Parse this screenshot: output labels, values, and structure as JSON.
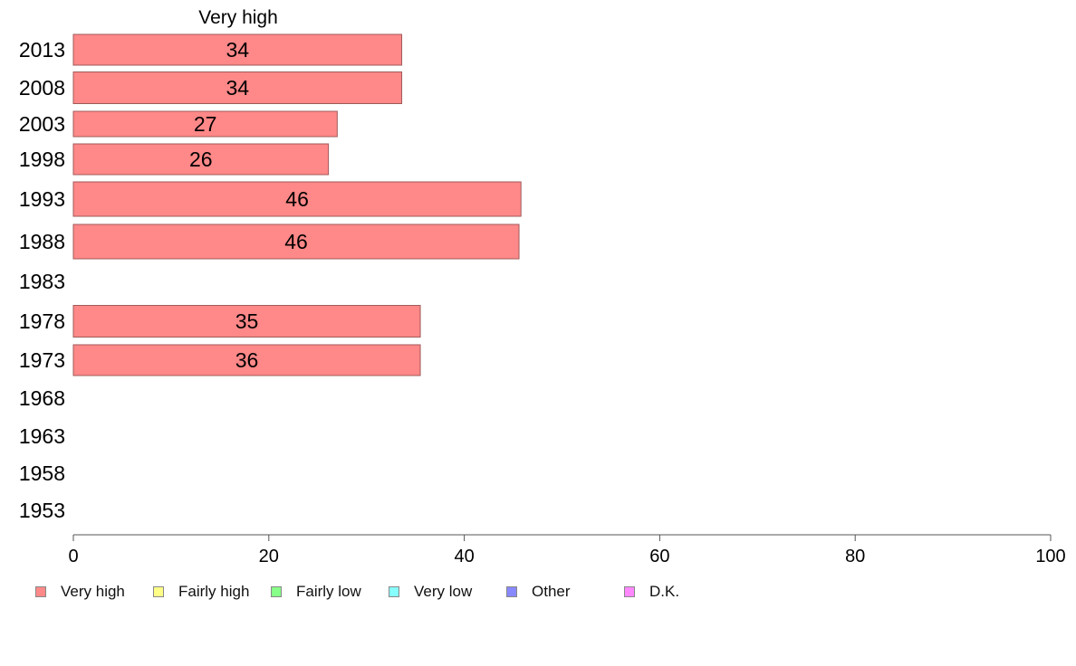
{
  "chart_data": {
    "type": "bar",
    "orientation": "horizontal",
    "title": "Very high",
    "categories": [
      "2013",
      "2008",
      "2003",
      "1998",
      "1993",
      "1988",
      "1983",
      "1978",
      "1973",
      "1968",
      "1963",
      "1958",
      "1953"
    ],
    "series": [
      {
        "name": "Very high",
        "values": [
          33.6,
          33.6,
          27.0,
          26.1,
          45.8,
          45.6,
          null,
          35.5,
          35.5,
          null,
          null,
          null,
          null
        ],
        "labels": [
          "34",
          "34",
          "27",
          "26",
          "46",
          "46",
          "",
          "35",
          "36",
          "",
          "",
          "",
          ""
        ]
      }
    ],
    "xlim": [
      0,
      100
    ],
    "xticks": [
      "0",
      "20",
      "40",
      "60",
      "80",
      "100"
    ],
    "grid": false,
    "legend_position": "bottom",
    "legend": [
      {
        "label": "Very high",
        "color": "#ff8888"
      },
      {
        "label": "Fairly high",
        "color": "#ffff88"
      },
      {
        "label": "Fairly low",
        "color": "#88ff88"
      },
      {
        "label": "Very low",
        "color": "#88ffff"
      },
      {
        "label": "Other",
        "color": "#8888ff"
      },
      {
        "label": "D.K.",
        "color": "#ff88ff"
      }
    ],
    "bar_color": "#ff8888",
    "bar_edge_color": "#a05a5a",
    "axis_color": "#555555"
  }
}
